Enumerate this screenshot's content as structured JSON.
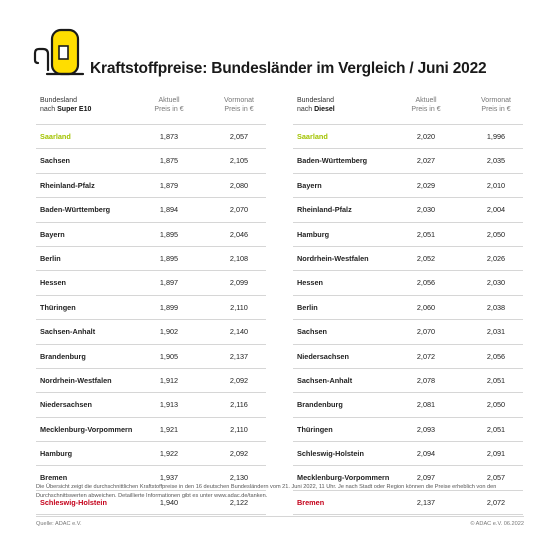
{
  "header": {
    "title": "Kraftstoffpreise: Bundesländer im Vergleich / Juni 2022"
  },
  "colors": {
    "pump_yellow": "#ffdd00",
    "pump_outline": "#1a1a1a",
    "best_green": "#a2c300",
    "worst_red": "#c4001a"
  },
  "tables": {
    "e10": {
      "header": {
        "col1_line1": "Bundesland",
        "col1_line2_prefix": "nach ",
        "col1_line2_bold": "Super E10",
        "col2_line1": "Aktuell",
        "col2_line2": "Preis in €",
        "col3_line1": "Vormonat",
        "col3_line2": "Preis in €"
      },
      "rows": [
        {
          "name": "Saarland",
          "current": "1,873",
          "previous": "2,057"
        },
        {
          "name": "Sachsen",
          "current": "1,875",
          "previous": "2,105"
        },
        {
          "name": "Rheinland-Pfalz",
          "current": "1,879",
          "previous": "2,080"
        },
        {
          "name": "Baden-Württemberg",
          "current": "1,894",
          "previous": "2,070"
        },
        {
          "name": "Bayern",
          "current": "1,895",
          "previous": "2,046"
        },
        {
          "name": "Berlin",
          "current": "1,895",
          "previous": "2,108"
        },
        {
          "name": "Hessen",
          "current": "1,897",
          "previous": "2,099"
        },
        {
          "name": "Thüringen",
          "current": "1,899",
          "previous": "2,110"
        },
        {
          "name": "Sachsen-Anhalt",
          "current": "1,902",
          "previous": "2,140"
        },
        {
          "name": "Brandenburg",
          "current": "1,905",
          "previous": "2,137"
        },
        {
          "name": "Nordrhein-Westfalen",
          "current": "1,912",
          "previous": "2,092"
        },
        {
          "name": "Niedersachsen",
          "current": "1,913",
          "previous": "2,116"
        },
        {
          "name": "Mecklenburg-Vorpommern",
          "current": "1,921",
          "previous": "2,110"
        },
        {
          "name": "Hamburg",
          "current": "1,922",
          "previous": "2,092"
        },
        {
          "name": "Bremen",
          "current": "1,937",
          "previous": "2,130"
        },
        {
          "name": "Schleswig-Holstein",
          "current": "1,940",
          "previous": "2,122"
        }
      ]
    },
    "diesel": {
      "header": {
        "col1_line1": "Bundesland",
        "col1_line2_prefix": "nach ",
        "col1_line2_bold": "Diesel",
        "col2_line1": "Aktuell",
        "col2_line2": "Preis in €",
        "col3_line1": "Vormonat",
        "col3_line2": "Preis in €"
      },
      "rows": [
        {
          "name": "Saarland",
          "current": "2,020",
          "previous": "1,996"
        },
        {
          "name": "Baden-Württemberg",
          "current": "2,027",
          "previous": "2,035"
        },
        {
          "name": "Bayern",
          "current": "2,029",
          "previous": "2,010"
        },
        {
          "name": "Rheinland-Pfalz",
          "current": "2,030",
          "previous": "2,004"
        },
        {
          "name": "Hamburg",
          "current": "2,051",
          "previous": "2,050"
        },
        {
          "name": "Nordrhein-Westfalen",
          "current": "2,052",
          "previous": "2,026"
        },
        {
          "name": "Hessen",
          "current": "2,056",
          "previous": "2,030"
        },
        {
          "name": "Berlin",
          "current": "2,060",
          "previous": "2,038"
        },
        {
          "name": "Sachsen",
          "current": "2,070",
          "previous": "2,031"
        },
        {
          "name": "Niedersachsen",
          "current": "2,072",
          "previous": "2,056"
        },
        {
          "name": "Sachsen-Anhalt",
          "current": "2,078",
          "previous": "2,051"
        },
        {
          "name": "Brandenburg",
          "current": "2,081",
          "previous": "2,050"
        },
        {
          "name": "Thüringen",
          "current": "2,093",
          "previous": "2,051"
        },
        {
          "name": "Schleswig-Holstein",
          "current": "2,094",
          "previous": "2,091"
        },
        {
          "name": "Mecklenburg-Vorpommern",
          "current": "2,097",
          "previous": "2,057"
        },
        {
          "name": "Bremen",
          "current": "2,137",
          "previous": "2,072"
        }
      ]
    }
  },
  "footnote": "Die Übersicht zeigt die durchschnittlichen Kraftstoffpreise in den 16 deutschen Bundesländern vom 21. Juni 2022, 11 Uhr. Je nach Stadt oder Region können die Preise erheblich von den Durchschnittswerten abweichen. Detaillierte Informationen gibt es unter www.adac.de/tanken.",
  "source": "Quelle: ADAC e.V.",
  "copyright": "© ADAC e.V. 06.2022"
}
